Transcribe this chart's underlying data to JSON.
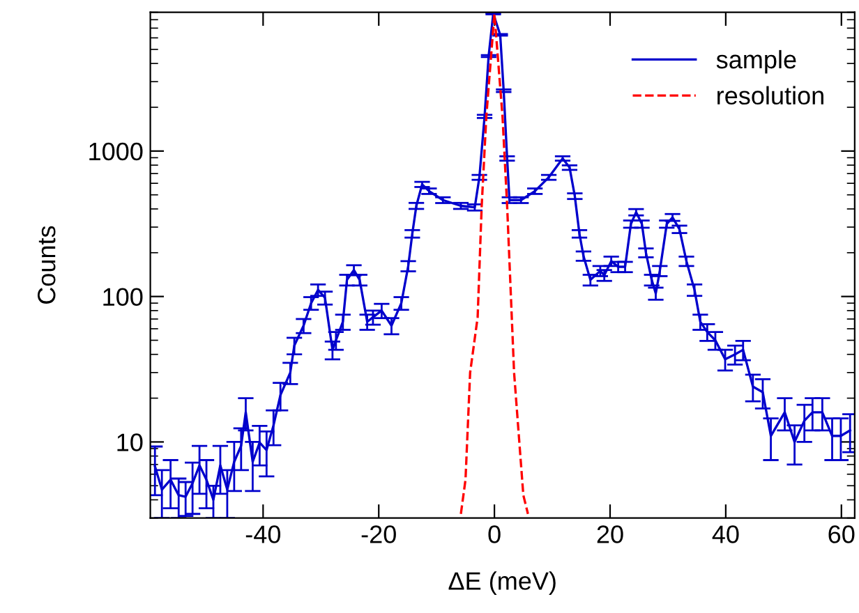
{
  "chart_data": {
    "type": "line",
    "xlabel": "ΔE (meV)",
    "ylabel": "Counts",
    "log": "y",
    "xlim": [
      -59.5,
      62.3
    ],
    "ylim": [
      3,
      9000
    ],
    "xticks": [
      -40,
      -20,
      0,
      20,
      40,
      60
    ],
    "yticks": [
      10,
      100,
      1000
    ],
    "grid": false,
    "legend": "top right",
    "marker": "none",
    "series": [
      {
        "name": "sample",
        "color": "#0000cc",
        "line_style": "solid",
        "x": [
          -58.7,
          -57.5,
          -56,
          -54.6,
          -53.4,
          -52.2,
          -51,
          -49.8,
          -48.6,
          -47.4,
          -46.2,
          -45,
          -43.8,
          -43,
          -41.8,
          -40.6,
          -39.4,
          -38.2,
          -37,
          -35.3,
          -34.6,
          -33,
          -31.7,
          -30.5,
          -29.3,
          -28,
          -27.4,
          -26.2,
          -25.5,
          -24.3,
          -23.3,
          -22,
          -21,
          -19.5,
          -17.8,
          -16.1,
          -14.9,
          -14.2,
          -13.5,
          -12.5,
          -11.3,
          -8.9,
          -5.8,
          -3.4,
          -2.6,
          -1.7,
          -1,
          -0.2,
          1.0,
          1.6,
          2.2,
          2.6,
          4.6,
          7,
          9.4,
          11.8,
          13,
          13.9,
          14.7,
          15.4,
          16.6,
          18.3,
          19,
          20.2,
          21.4,
          22.6,
          23.6,
          24.5,
          25.5,
          26.2,
          27.2,
          27.9,
          28.6,
          29.8,
          30.8,
          32,
          33.2,
          34.6,
          35.6,
          36.8,
          38.2,
          39.9,
          41.6,
          43,
          44.7,
          46.4,
          47.8,
          50.2,
          51.9,
          53.6,
          55,
          56.7,
          58.4,
          59.9,
          61.5
        ],
        "values": [
          6.8,
          4.7,
          5.5,
          4.3,
          4.2,
          5.2,
          6.9,
          5.5,
          4.0,
          6.9,
          4.7,
          7.3,
          9.4,
          16,
          7.3,
          9.9,
          8.8,
          13,
          21,
          30,
          46,
          63,
          90,
          111,
          98,
          43,
          50,
          67,
          130,
          152,
          130,
          67,
          72,
          80,
          63,
          90,
          162,
          270,
          420,
          590,
          530,
          460,
          420,
          410,
          660,
          1730,
          4500,
          8800,
          6300,
          2600,
          890,
          460,
          460,
          530,
          660,
          890,
          770,
          490,
          270,
          190,
          130,
          150,
          140,
          175,
          160,
          160,
          315,
          380,
          315,
          200,
          130,
          105,
          150,
          315,
          350,
          290,
          175,
          111,
          67,
          57,
          50,
          37,
          40,
          43,
          24,
          22,
          11,
          16,
          10,
          14,
          16,
          16,
          11,
          11,
          12
        ],
        "errors": [
          2.5,
          1.7,
          2,
          1.3,
          1.1,
          2,
          2.5,
          2,
          1,
          2.5,
          1.7,
          2.7,
          3,
          4,
          2.7,
          3,
          3,
          3.5,
          4.5,
          5,
          6,
          7,
          9,
          10,
          10,
          6,
          7,
          8,
          11,
          12,
          11,
          8,
          8,
          9,
          8,
          9,
          13,
          16,
          20,
          24,
          23,
          21,
          20,
          20,
          26,
          42,
          67,
          90,
          80,
          51,
          30,
          21,
          21,
          23,
          26,
          30,
          28,
          22,
          16,
          14,
          11,
          12,
          12,
          13,
          13,
          13,
          18,
          19,
          18,
          14,
          11,
          10,
          12,
          18,
          19,
          17,
          13,
          10,
          8,
          7.5,
          7,
          6,
          6,
          6.5,
          5,
          5,
          3.5,
          4,
          3,
          4,
          4,
          4,
          3.5,
          3.5,
          3.5
        ]
      },
      {
        "name": "resolution",
        "color": "#ff0000",
        "line_style": "dashed",
        "x": [
          -5.8,
          -5,
          -4.2,
          -2.9,
          -2.2,
          -1.4,
          0,
          1.4,
          2.2,
          3.4,
          5,
          5.8
        ],
        "values": [
          3.2,
          5.5,
          30,
          72,
          420,
          1730,
          8800,
          1730,
          420,
          30,
          4.3,
          3.2
        ]
      }
    ]
  }
}
